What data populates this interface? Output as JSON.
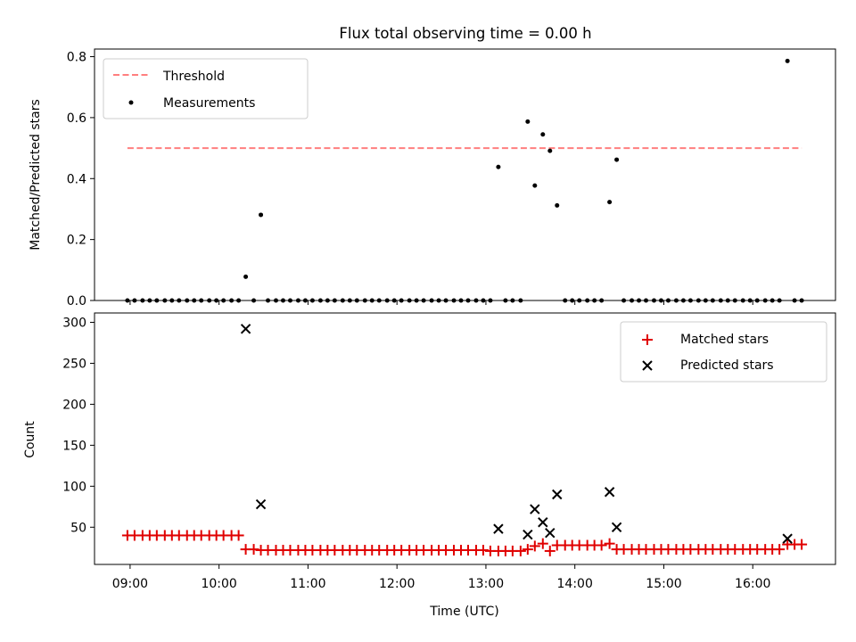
{
  "colors": {
    "threshold": "#ff7f7f",
    "measurement": "#000000",
    "matched": "#e00000",
    "predicted": "#000000",
    "axes": "#000000",
    "background": "#ffffff"
  },
  "chart_data": [
    {
      "type": "scatter",
      "title": "Flux total observing time = 0.00 h",
      "xlabel": "",
      "ylabel": "Matched/Predicted stars",
      "xlim": [
        8.6,
        16.93
      ],
      "ylim": [
        0,
        0.825
      ],
      "yticks": [
        0,
        0.2,
        0.4,
        0.6,
        0.8
      ],
      "ytick_labels": [
        "0.0",
        "0.2",
        "0.4",
        "0.6",
        "0.8"
      ],
      "xticks": [
        9,
        10,
        11,
        12,
        13,
        14,
        15,
        16
      ],
      "grid": false,
      "legend_position": "upper-left",
      "legend": [
        {
          "label": "Threshold",
          "kind": "dashed-line"
        },
        {
          "label": "Measurements",
          "kind": "dot"
        }
      ],
      "threshold": {
        "name": "Threshold",
        "value": 0.5,
        "x_range": [
          8.97,
          16.55
        ]
      },
      "series": [
        {
          "name": "Measurements",
          "x": [
            8.97,
            9.05,
            9.14,
            9.22,
            9.3,
            9.39,
            9.47,
            9.55,
            9.64,
            9.72,
            9.8,
            9.89,
            9.97,
            10.05,
            10.14,
            10.22,
            10.3,
            10.39,
            10.47,
            10.55,
            10.64,
            10.72,
            10.8,
            10.89,
            10.97,
            11.05,
            11.14,
            11.22,
            11.3,
            11.39,
            11.47,
            11.55,
            11.64,
            11.72,
            11.8,
            11.89,
            11.97,
            12.05,
            12.14,
            12.22,
            12.3,
            12.39,
            12.47,
            12.55,
            12.64,
            12.72,
            12.8,
            12.89,
            12.97,
            13.05,
            13.14,
            13.22,
            13.3,
            13.39,
            13.47,
            13.55,
            13.64,
            13.72,
            13.8,
            13.89,
            13.97,
            14.05,
            14.14,
            14.22,
            14.3,
            14.39,
            14.47,
            14.55,
            14.64,
            14.72,
            14.8,
            14.89,
            14.97,
            15.05,
            15.14,
            15.22,
            15.3,
            15.39,
            15.47,
            15.55,
            15.64,
            15.72,
            15.8,
            15.89,
            15.97,
            16.05,
            16.14,
            16.22,
            16.3,
            16.39,
            16.47,
            16.55
          ],
          "y": [
            0,
            0,
            0,
            0,
            0,
            0,
            0,
            0,
            0,
            0,
            0,
            0,
            0,
            0,
            0,
            0,
            0.078,
            0,
            0.281,
            0,
            0,
            0,
            0,
            0,
            0,
            0,
            0,
            0,
            0,
            0,
            0,
            0,
            0,
            0,
            0,
            0,
            0,
            0,
            0,
            0,
            0,
            0,
            0,
            0,
            0,
            0,
            0,
            0,
            0,
            0,
            0.438,
            0,
            0,
            0,
            0.587,
            0.377,
            0.545,
            0.491,
            0.312,
            0,
            0,
            0,
            0,
            0,
            0,
            0.323,
            0.462,
            0,
            0,
            0,
            0,
            0,
            0,
            0,
            0,
            0,
            0,
            0,
            0,
            0,
            0,
            0,
            0,
            0,
            0,
            0,
            0,
            0,
            0,
            0.786,
            0,
            0
          ]
        }
      ]
    },
    {
      "type": "scatter",
      "title": "",
      "xlabel": "Time (UTC)",
      "ylabel": "Count",
      "xlim": [
        8.6,
        16.93
      ],
      "ylim": [
        4.6,
        311.4
      ],
      "yticks": [
        50,
        100,
        150,
        200,
        250,
        300
      ],
      "ytick_labels": [
        "50",
        "100",
        "150",
        "200",
        "250",
        "300"
      ],
      "xticks": [
        9,
        10,
        11,
        12,
        13,
        14,
        15,
        16
      ],
      "xtick_labels": [
        "09:00",
        "10:00",
        "11:00",
        "12:00",
        "13:00",
        "14:00",
        "15:00",
        "16:00"
      ],
      "grid": false,
      "legend_position": "upper-right",
      "legend": [
        {
          "label": "Matched stars",
          "kind": "plus"
        },
        {
          "label": "Predicted stars",
          "kind": "cross"
        }
      ],
      "series": [
        {
          "name": "Matched stars",
          "x": [
            8.97,
            9.05,
            9.14,
            9.22,
            9.3,
            9.39,
            9.47,
            9.55,
            9.64,
            9.72,
            9.8,
            9.89,
            9.97,
            10.05,
            10.14,
            10.22,
            10.3,
            10.39,
            10.47,
            10.55,
            10.64,
            10.72,
            10.8,
            10.89,
            10.97,
            11.05,
            11.14,
            11.22,
            11.3,
            11.39,
            11.47,
            11.55,
            11.64,
            11.72,
            11.8,
            11.89,
            11.97,
            12.05,
            12.14,
            12.22,
            12.3,
            12.39,
            12.47,
            12.55,
            12.64,
            12.72,
            12.8,
            12.89,
            12.97,
            13.05,
            13.14,
            13.22,
            13.3,
            13.39,
            13.47,
            13.55,
            13.64,
            13.72,
            13.8,
            13.89,
            13.97,
            14.05,
            14.14,
            14.22,
            14.3,
            14.39,
            14.47,
            14.55,
            14.64,
            14.72,
            14.8,
            14.89,
            14.97,
            15.05,
            15.14,
            15.22,
            15.3,
            15.39,
            15.47,
            15.55,
            15.64,
            15.72,
            15.8,
            15.89,
            15.97,
            16.05,
            16.14,
            16.22,
            16.3,
            16.39,
            16.47,
            16.55
          ],
          "y": [
            40,
            40,
            40,
            40,
            40,
            40,
            40,
            40,
            40,
            40,
            40,
            40,
            40,
            40,
            40,
            40,
            23,
            23,
            22,
            22,
            22,
            22,
            22,
            22,
            22,
            22,
            22,
            22,
            22,
            22,
            22,
            22,
            22,
            22,
            22,
            22,
            22,
            22,
            22,
            22,
            22,
            22,
            22,
            22,
            22,
            22,
            22,
            22,
            22,
            21,
            21,
            21,
            21,
            21,
            23,
            27,
            30,
            21,
            28,
            28,
            28,
            28,
            28,
            28,
            28,
            30,
            23,
            23,
            23,
            23,
            23,
            23,
            23,
            23,
            23,
            23,
            23,
            23,
            23,
            23,
            23,
            23,
            23,
            23,
            23,
            23,
            23,
            23,
            23,
            29,
            29,
            29
          ]
        },
        {
          "name": "Predicted stars",
          "x": [
            10.3,
            10.47,
            13.14,
            13.47,
            13.55,
            13.64,
            13.72,
            13.8,
            14.39,
            14.47,
            16.39
          ],
          "y": [
            292,
            78,
            48,
            41,
            72,
            56,
            43,
            90,
            93,
            50,
            36
          ]
        }
      ]
    }
  ]
}
